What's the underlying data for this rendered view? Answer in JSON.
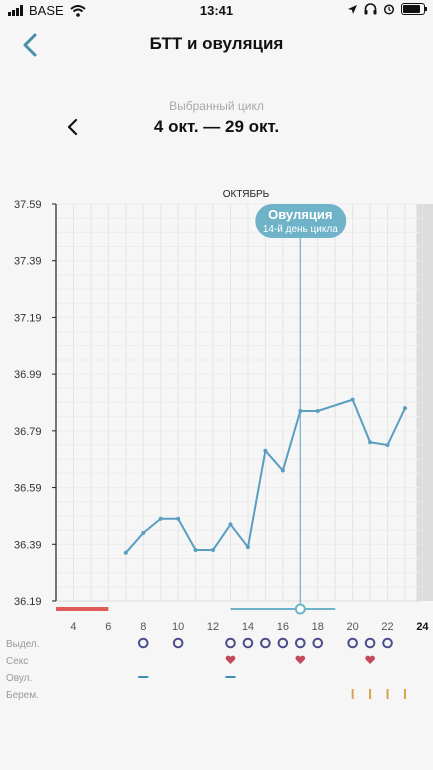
{
  "status": {
    "carrier": "BASE",
    "time": "13:41"
  },
  "header": {
    "title": "БТТ и овуляция"
  },
  "cycle": {
    "caption": "Выбранный цикл",
    "range": "4 окт. — 29 окт."
  },
  "chart_data": {
    "type": "line",
    "month_label": "ОКТЯБРЬ",
    "y_ticks": [
      "37.59",
      "37.39",
      "37.19",
      "36.99",
      "36.79",
      "36.59",
      "36.39",
      "36.19"
    ],
    "ylim": [
      36.19,
      37.59
    ],
    "x_ticks": [
      "4",
      "6",
      "8",
      "10",
      "12",
      "14",
      "16",
      "18",
      "20",
      "22",
      "24"
    ],
    "x_range": [
      3,
      25
    ],
    "highlight_tick": "24",
    "ovulation": {
      "day": 17,
      "title": "Овуляция",
      "subtitle": "14-й день цикла"
    },
    "series": [
      {
        "color": "#5a9ec0",
        "points": [
          [
            7,
            36.36
          ],
          [
            8,
            36.43
          ],
          [
            9,
            36.48
          ],
          [
            10,
            36.48
          ],
          [
            11,
            36.37
          ],
          [
            12,
            36.37
          ],
          [
            13,
            36.46
          ],
          [
            14,
            36.38
          ],
          [
            15,
            36.72
          ],
          [
            16,
            36.65
          ],
          [
            17,
            36.86
          ],
          [
            18,
            36.86
          ],
          [
            20,
            36.9
          ],
          [
            21,
            36.75
          ],
          [
            22,
            36.74
          ],
          [
            23,
            36.87
          ]
        ]
      }
    ],
    "period_days": [
      3,
      6
    ],
    "fertile_days": [
      13,
      19
    ],
    "today_day": 24
  },
  "rows": [
    {
      "label": "Выдел.",
      "type": "ring",
      "days": [
        8,
        10,
        13,
        14,
        15,
        16,
        17,
        18,
        20,
        21,
        22
      ]
    },
    {
      "label": "Секс",
      "type": "heart",
      "days": [
        13,
        17,
        21
      ]
    },
    {
      "label": "Овул.",
      "type": "dash",
      "days": [
        8,
        13
      ]
    },
    {
      "label": "Берем.",
      "type": "tick",
      "days": [
        20,
        21,
        22,
        23
      ]
    }
  ],
  "colors": {
    "line": "#5a9ec0",
    "period": "#e25b5b",
    "fertile": "#6fb3c9",
    "ring": "#4b4d8c",
    "heart": "#c24a5a",
    "ovul": "#3f8eb0",
    "preg": "#d9a24c",
    "today_band": "#dcdcdc"
  }
}
